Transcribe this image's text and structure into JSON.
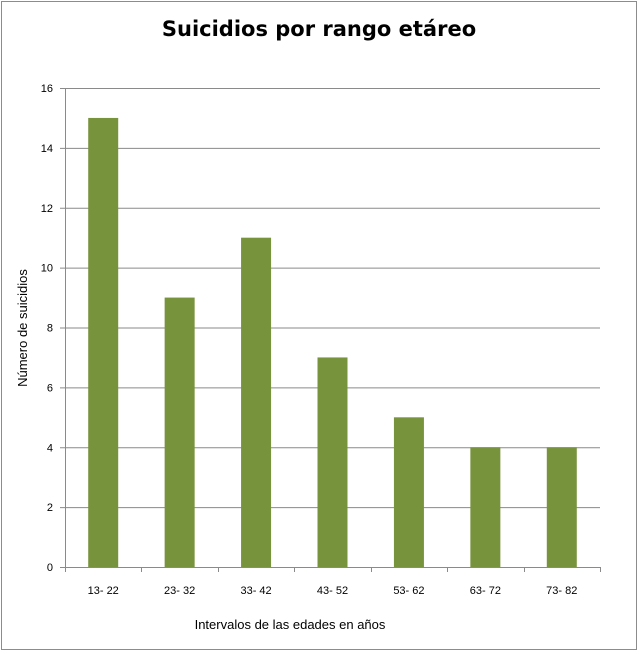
{
  "chart_data": {
    "type": "bar",
    "title": "Suicidios por rango etáreo",
    "xlabel": "Intervalos de las edades en años",
    "ylabel": "Número de suicidios",
    "categories": [
      "13- 22",
      "23- 32",
      "33- 42",
      "43- 52",
      "53- 62",
      "63- 72",
      "73- 82"
    ],
    "values": [
      15,
      9,
      11,
      7,
      5,
      4,
      4
    ],
    "ylim": [
      0,
      16
    ],
    "yticks": [
      0,
      2,
      4,
      6,
      8,
      10,
      12,
      14,
      16
    ],
    "grid": true,
    "legend": "none",
    "bar_color": "#77933C"
  }
}
